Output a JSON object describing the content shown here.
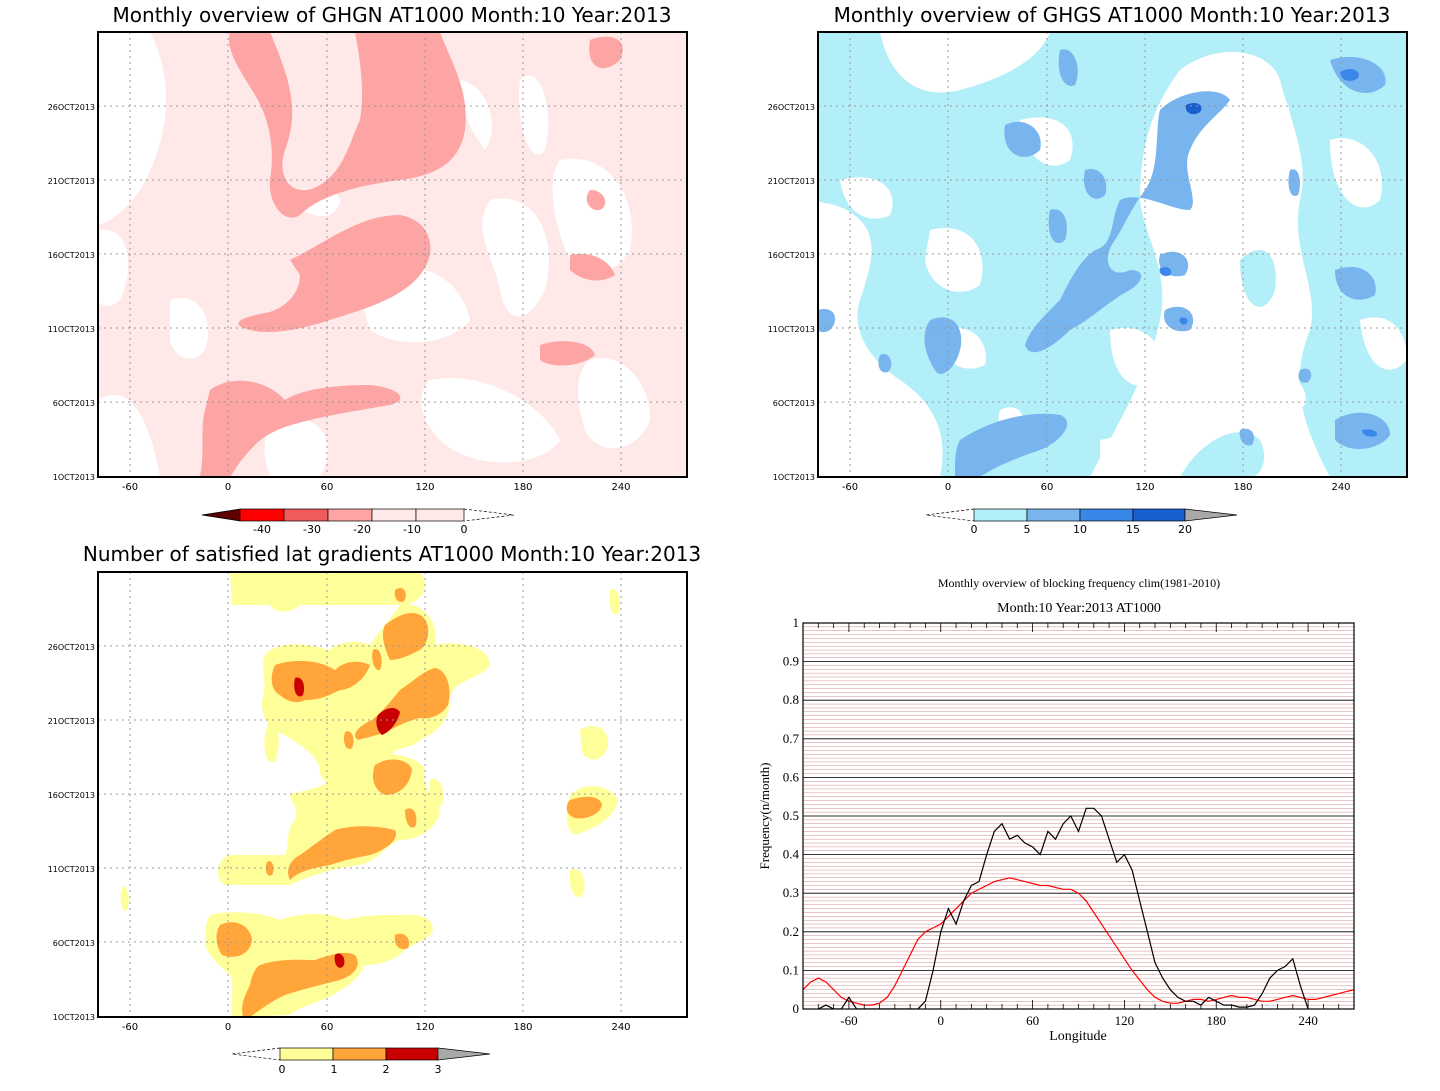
{
  "colors": {
    "reds": [
      "#5c0000",
      "#ff0000",
      "#f05a5a",
      "#fda4a4",
      "#ffe8e8"
    ],
    "blues": [
      "#b3eff8",
      "#78b4ee",
      "#3a87ea",
      "#1a5fd0",
      "#a9a9a9"
    ],
    "ylor": [
      "#ffff9a",
      "#ffa53a",
      "#c80000",
      "#a9a9a9"
    ],
    "clim_line": "#ff0000",
    "obs_line": "#000000"
  },
  "chart_data": [
    {
      "type": "heatmap",
      "title": "Monthly overview of GHGN AT1000 Month:10 Year:2013",
      "x_ticks": [
        "-60",
        "0",
        "60",
        "120",
        "180",
        "240"
      ],
      "y_ticks": [
        "1OCT2013",
        "6OCT2013",
        "11OCT2013",
        "16OCT2013",
        "21OCT2013",
        "26OCT2013"
      ],
      "colorbar": [
        "-40",
        "-30",
        "-20",
        "-10",
        "0"
      ]
    },
    {
      "type": "heatmap",
      "title": "Monthly overview of GHGS AT1000 Month:10 Year:2013",
      "x_ticks": [
        "-60",
        "0",
        "60",
        "120",
        "180",
        "240"
      ],
      "y_ticks": [
        "1OCT2013",
        "6OCT2013",
        "11OCT2013",
        "16OCT2013",
        "21OCT2013",
        "26OCT2013"
      ],
      "colorbar": [
        "0",
        "5",
        "10",
        "15",
        "20"
      ]
    },
    {
      "type": "heatmap",
      "title": "Number of satisfied lat gradients AT1000 Month:10 Year:2013",
      "x_ticks": [
        "-60",
        "0",
        "60",
        "120",
        "180",
        "240"
      ],
      "y_ticks": [
        "1OCT2013",
        "6OCT2013",
        "11OCT2013",
        "16OCT2013",
        "21OCT2013",
        "26OCT2013"
      ],
      "colorbar": [
        "0",
        "1",
        "2",
        "3"
      ]
    },
    {
      "type": "line",
      "title": "Monthly overview of blocking frequency clim(1981-2010)",
      "subtitle": "Month:10 Year:2013  AT1000",
      "xlabel": "Longitude",
      "ylabel": "Frequency(n/month)",
      "xlim": [
        -90,
        270
      ],
      "ylim": [
        0,
        1
      ],
      "x_ticks": [
        "-60",
        "0",
        "60",
        "120",
        "180",
        "240"
      ],
      "y_ticks": [
        "0",
        "0.1",
        "0.2",
        "0.3",
        "0.4",
        "0.5",
        "0.6",
        "0.7",
        "0.8",
        "0.9",
        "1"
      ],
      "series": [
        {
          "x": [
            -90,
            -85,
            -80,
            -75,
            -70,
            -65,
            -60,
            -55,
            -50,
            -45,
            -40,
            -35,
            -30,
            -25,
            -20,
            -15,
            -10,
            -5,
            0,
            5,
            10,
            15,
            20,
            25,
            30,
            35,
            40,
            45,
            50,
            55,
            60,
            65,
            70,
            75,
            80,
            85,
            90,
            95,
            100,
            105,
            110,
            115,
            120,
            125,
            130,
            135,
            140,
            145,
            150,
            155,
            160,
            165,
            170,
            175,
            180,
            185,
            190,
            195,
            200,
            205,
            210,
            215,
            220,
            225,
            230,
            235,
            240,
            245,
            250,
            255,
            260,
            265,
            270
          ],
          "values": [
            0.05,
            0.07,
            0.08,
            0.07,
            0.05,
            0.03,
            0.02,
            0.015,
            0.01,
            0.01,
            0.015,
            0.03,
            0.06,
            0.1,
            0.14,
            0.18,
            0.2,
            0.21,
            0.22,
            0.24,
            0.26,
            0.28,
            0.3,
            0.31,
            0.32,
            0.33,
            0.335,
            0.34,
            0.335,
            0.33,
            0.325,
            0.32,
            0.32,
            0.315,
            0.31,
            0.31,
            0.3,
            0.28,
            0.25,
            0.22,
            0.19,
            0.16,
            0.13,
            0.1,
            0.075,
            0.05,
            0.03,
            0.02,
            0.015,
            0.015,
            0.02,
            0.025,
            0.025,
            0.02,
            0.025,
            0.03,
            0.035,
            0.03,
            0.03,
            0.025,
            0.02,
            0.02,
            0.025,
            0.03,
            0.035,
            0.03,
            0.025,
            0.025,
            0.03,
            0.035,
            0.04,
            0.045,
            0.05
          ]
        },
        {
          "x": [
            -80,
            -75,
            -70,
            -65,
            -60,
            -55,
            -50,
            -45,
            -40,
            -35,
            -30,
            -25,
            -20,
            -15,
            -10,
            -5,
            0,
            5,
            10,
            15,
            20,
            25,
            30,
            35,
            40,
            45,
            50,
            55,
            60,
            65,
            70,
            75,
            80,
            85,
            90,
            95,
            100,
            105,
            110,
            115,
            120,
            125,
            130,
            135,
            140,
            145,
            150,
            155,
            160,
            165,
            170,
            175,
            180,
            185,
            190,
            195,
            200,
            205,
            210,
            215,
            220,
            225,
            230,
            235,
            240
          ],
          "values": [
            0,
            0.01,
            0,
            0,
            0.03,
            0,
            0,
            0,
            0,
            0,
            0,
            0,
            0,
            0,
            0.02,
            0.1,
            0.2,
            0.26,
            0.22,
            0.28,
            0.32,
            0.33,
            0.4,
            0.46,
            0.48,
            0.44,
            0.45,
            0.43,
            0.42,
            0.4,
            0.46,
            0.44,
            0.48,
            0.5,
            0.46,
            0.52,
            0.52,
            0.5,
            0.44,
            0.38,
            0.4,
            0.36,
            0.28,
            0.2,
            0.12,
            0.08,
            0.05,
            0.03,
            0.02,
            0.02,
            0.01,
            0.03,
            0.02,
            0.01,
            0.01,
            0.005,
            0.005,
            0.01,
            0.04,
            0.08,
            0.1,
            0.11,
            0.13,
            0.06,
            0
          ]
        }
      ]
    }
  ]
}
